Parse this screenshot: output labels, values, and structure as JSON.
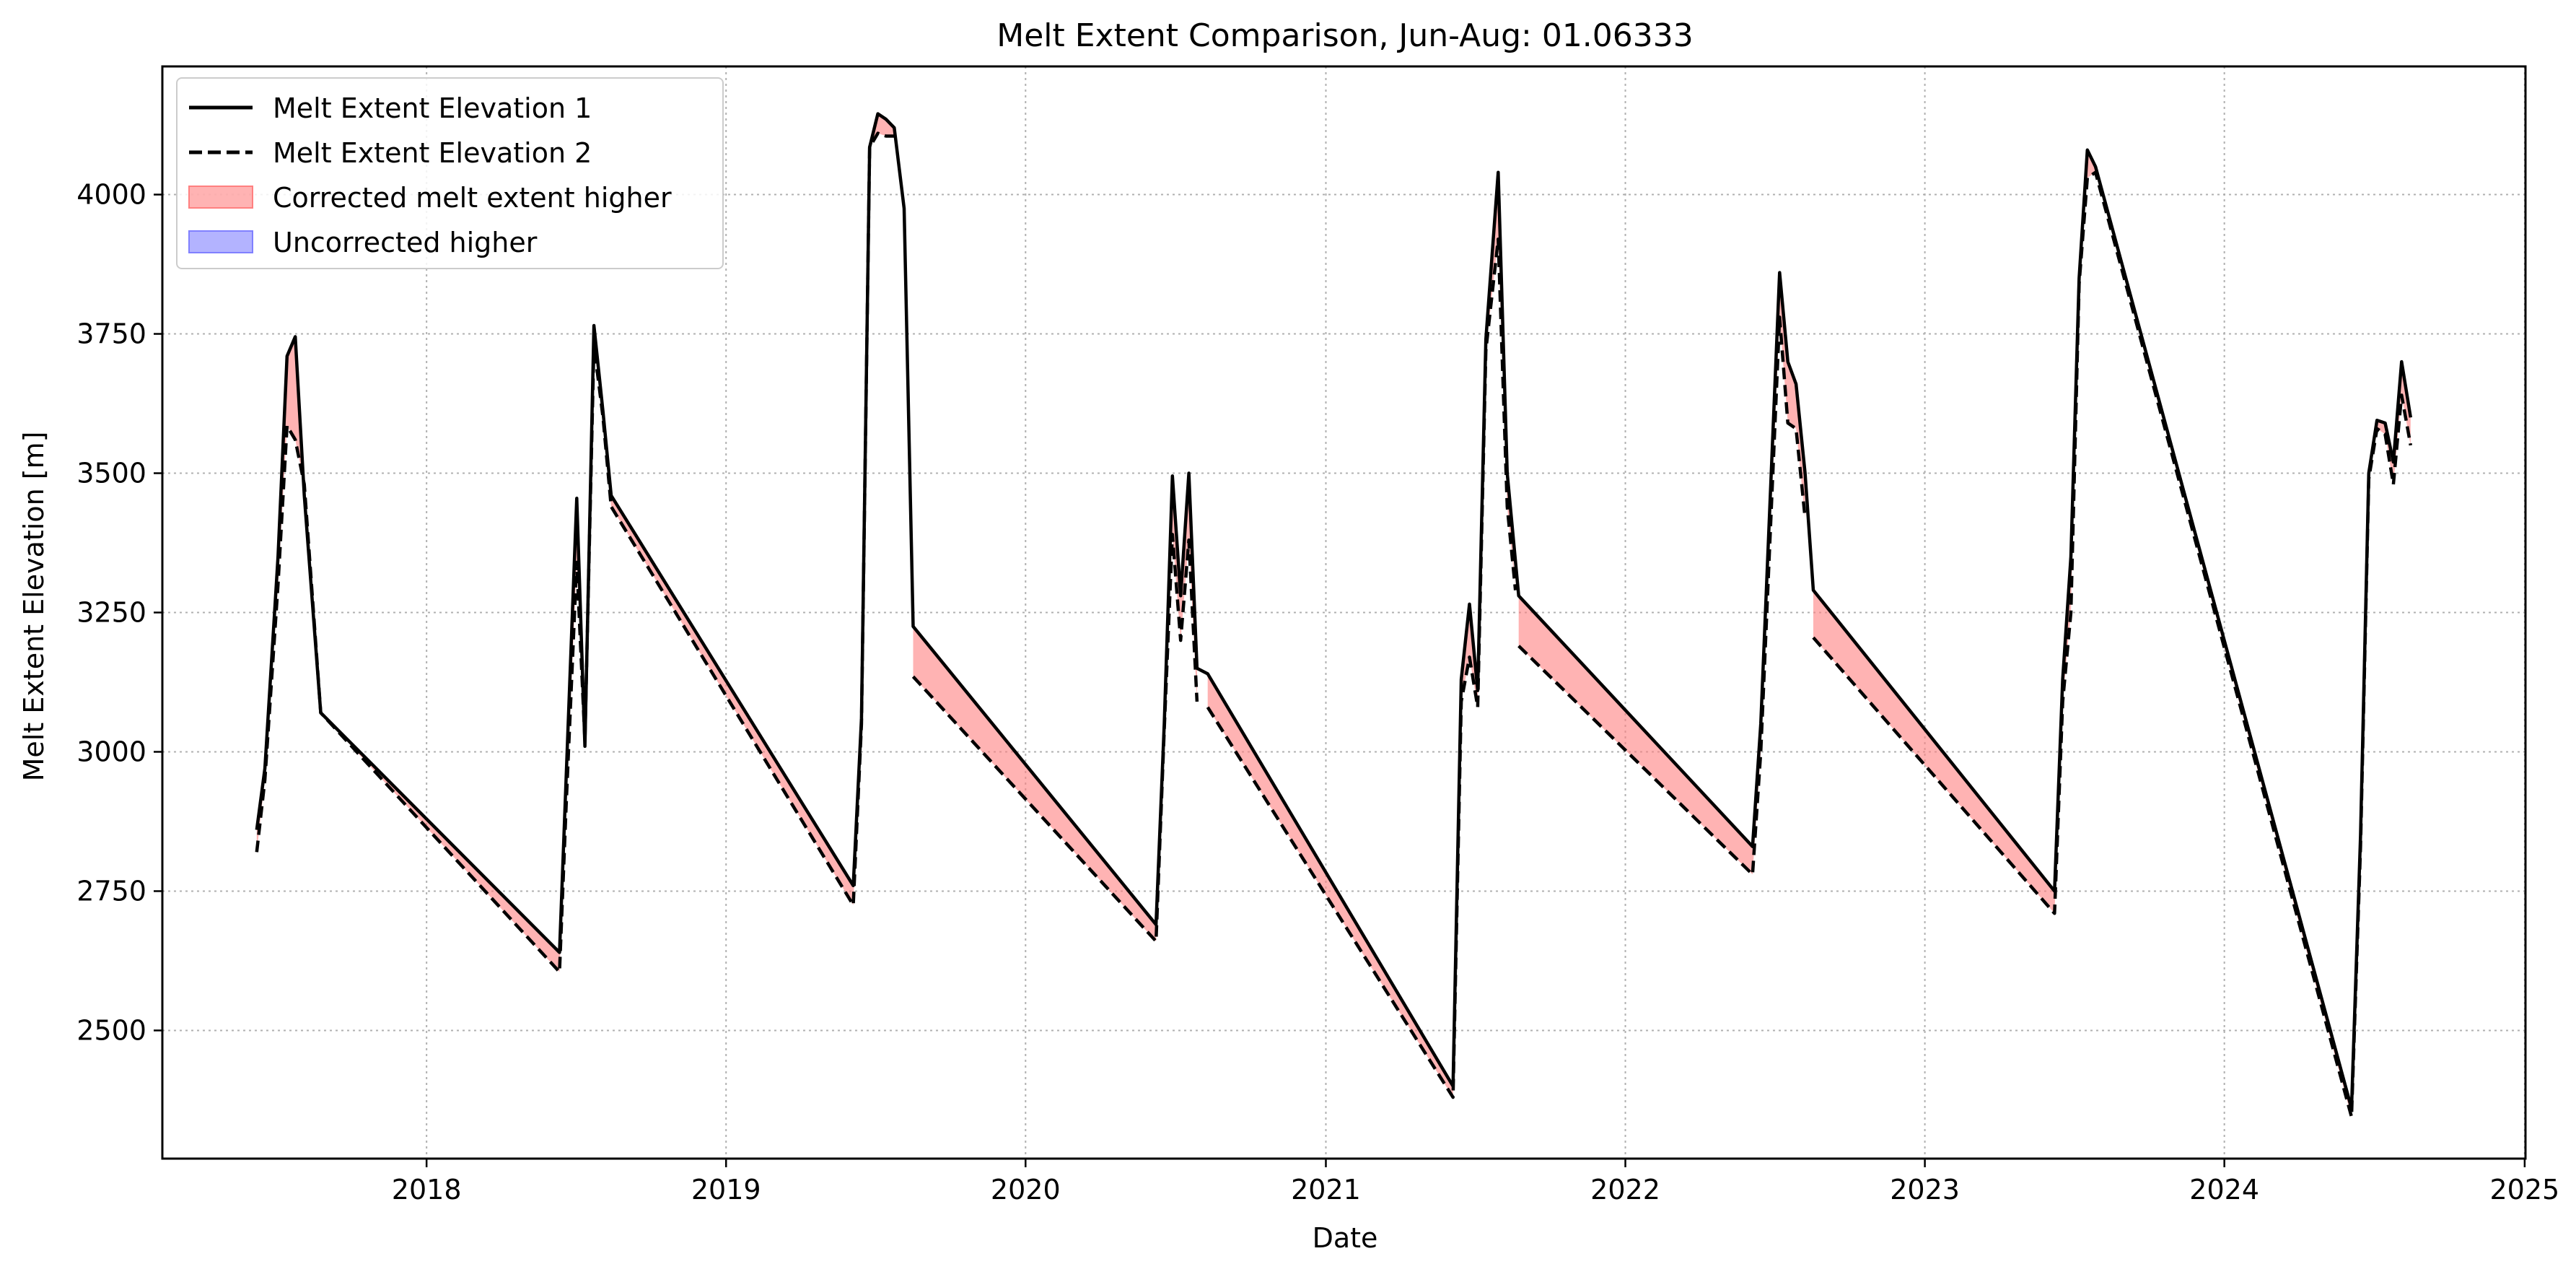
{
  "chart_data": {
    "type": "line",
    "title": "Melt Extent Comparison, Jun-Aug: 01.06333",
    "xlabel": "Date",
    "ylabel": "Melt Extent Elevation [m]",
    "x_ticks": [
      "2018",
      "2019",
      "2020",
      "2021",
      "2022",
      "2023",
      "2024",
      "2025"
    ],
    "y_ticks": [
      "2500",
      "2750",
      "3000",
      "3250",
      "3500",
      "3750",
      "4000"
    ],
    "xlim": [
      "2017-02-13",
      "2025-01-02"
    ],
    "ylim": [
      2270,
      4230
    ],
    "grid": true,
    "legend": {
      "location": "upper-left",
      "entries": [
        "Melt Extent Elevation 1",
        "Melt Extent Elevation 2",
        "Corrected melt extent higher",
        "Uncorrected higher"
      ]
    },
    "colors": {
      "line": "#000000",
      "corrected_higher_fill": "#ff8080",
      "uncorrected_higher_fill": "#8080ff",
      "grid": "#b0b0b0"
    },
    "series": [
      {
        "name": "Melt Extent Elevation 1",
        "style": "solid",
        "segments": [
          [
            [
              "2017-06-08",
              2860
            ],
            [
              "2017-06-18",
              2970
            ],
            [
              "2017-07-04",
              3350
            ],
            [
              "2017-07-15",
              3710
            ],
            [
              "2017-07-25",
              3745
            ],
            [
              "2017-08-05",
              3460
            ],
            [
              "2017-08-25",
              3070
            ],
            [
              "2018-06-12",
              2640
            ],
            [
              "2018-06-20",
              2950
            ],
            [
              "2018-07-03",
              3455
            ],
            [
              "2018-07-13",
              3010
            ],
            [
              "2018-07-24",
              3765
            ],
            [
              "2018-08-04",
              3610
            ],
            [
              "2018-08-14",
              3460
            ],
            [
              "2019-06-05",
              2760
            ],
            [
              "2019-06-15",
              3060
            ],
            [
              "2019-06-25",
              4085
            ],
            [
              "2019-07-05",
              4145
            ],
            [
              "2019-07-15",
              4135
            ],
            [
              "2019-07-25",
              4120
            ],
            [
              "2019-08-06",
              3975
            ],
            [
              "2019-08-17",
              3225
            ],
            [
              "2020-06-08",
              2690
            ],
            [
              "2020-06-18",
              3050
            ],
            [
              "2020-06-28",
              3495
            ],
            [
              "2020-07-08",
              3280
            ],
            [
              "2020-07-18",
              3500
            ],
            [
              "2020-07-28",
              3150
            ],
            [
              "2020-08-10",
              3140
            ],
            [
              "2021-06-05",
              2400
            ],
            [
              "2021-06-15",
              3130
            ],
            [
              "2021-06-25",
              3265
            ],
            [
              "2021-07-05",
              3110
            ],
            [
              "2021-07-15",
              3740
            ],
            [
              "2021-07-30",
              4040
            ],
            [
              "2021-08-10",
              3500
            ],
            [
              "2021-08-24",
              3280
            ],
            [
              "2022-06-05",
              2830
            ],
            [
              "2022-06-15",
              3050
            ],
            [
              "2022-07-08",
              3860
            ],
            [
              "2022-07-18",
              3700
            ],
            [
              "2022-07-28",
              3660
            ],
            [
              "2022-08-08",
              3500
            ],
            [
              "2022-08-18",
              3290
            ],
            [
              "2023-06-08",
              2750
            ],
            [
              "2023-06-18",
              3130
            ],
            [
              "2023-06-28",
              3350
            ],
            [
              "2023-07-08",
              3850
            ],
            [
              "2023-07-18",
              4080
            ],
            [
              "2023-07-28",
              4050
            ],
            [
              "2024-06-04",
              2360
            ],
            [
              "2024-06-15",
              2850
            ],
            [
              "2024-06-25",
              3500
            ],
            [
              "2024-07-05",
              3595
            ],
            [
              "2024-07-15",
              3590
            ],
            [
              "2024-07-25",
              3520
            ],
            [
              "2024-08-04",
              3700
            ],
            [
              "2024-08-15",
              3600
            ]
          ]
        ]
      },
      {
        "name": "Melt Extent Elevation 2",
        "style": "dashed",
        "segments": [
          [
            [
              "2017-06-08",
              2820
            ],
            [
              "2017-06-18",
              2950
            ],
            [
              "2017-07-04",
              3300
            ],
            [
              "2017-07-15",
              3585
            ],
            [
              "2017-07-25",
              3560
            ],
            [
              "2017-08-05",
              3480
            ],
            [
              "2017-08-25",
              3070
            ],
            [
              "2018-06-12",
              2605
            ],
            [
              "2018-06-20",
              2900
            ],
            [
              "2018-07-03",
              3340
            ],
            [
              "2018-07-13",
              3020
            ],
            [
              "2018-07-24",
              3730
            ],
            [
              "2018-08-04",
              3600
            ],
            [
              "2018-08-14",
              3440
            ],
            [
              "2019-06-05",
              2725
            ],
            [
              "2019-06-15",
              3050
            ],
            [
              "2019-06-25",
              4085
            ],
            [
              "2019-07-05",
              4110
            ],
            [
              "2019-07-15",
              4105
            ],
            [
              "2019-07-25",
              4105
            ]
          ],
          [
            [
              "2019-08-17",
              3135
            ],
            [
              "2020-06-08",
              2660
            ],
            [
              "2020-06-18",
              3040
            ],
            [
              "2020-06-28",
              3390
            ],
            [
              "2020-07-08",
              3200
            ],
            [
              "2020-07-18",
              3380
            ],
            [
              "2020-07-28",
              3090
            ]
          ],
          [
            [
              "2020-08-10",
              3080
            ],
            [
              "2021-06-05",
              2380
            ],
            [
              "2021-06-15",
              3090
            ],
            [
              "2021-06-25",
              3170
            ],
            [
              "2021-07-05",
              3080
            ],
            [
              "2021-07-15",
              3720
            ],
            [
              "2021-07-30",
              3920
            ],
            [
              "2021-08-10",
              3440
            ],
            [
              "2021-08-20",
              3290
            ]
          ],
          [
            [
              "2021-08-24",
              3190
            ],
            [
              "2022-06-05",
              2780
            ],
            [
              "2022-06-15",
              3000
            ],
            [
              "2022-07-08",
              3780
            ],
            [
              "2022-07-18",
              3590
            ],
            [
              "2022-07-28",
              3580
            ],
            [
              "2022-08-08",
              3420
            ]
          ],
          [
            [
              "2022-08-18",
              3205
            ],
            [
              "2023-06-08",
              2710
            ],
            [
              "2023-06-18",
              3090
            ],
            [
              "2023-06-28",
              3250
            ],
            [
              "2023-07-08",
              3840
            ],
            [
              "2023-07-18",
              4030
            ],
            [
              "2023-07-28",
              4040
            ],
            [
              "2024-06-04",
              2345
            ],
            [
              "2024-06-15",
              2830
            ],
            [
              "2024-06-25",
              3490
            ],
            [
              "2024-07-05",
              3580
            ],
            [
              "2024-07-15",
              3570
            ],
            [
              "2024-07-25",
              3480
            ],
            [
              "2024-08-04",
              3640
            ],
            [
              "2024-08-15",
              3550
            ]
          ]
        ]
      }
    ]
  }
}
